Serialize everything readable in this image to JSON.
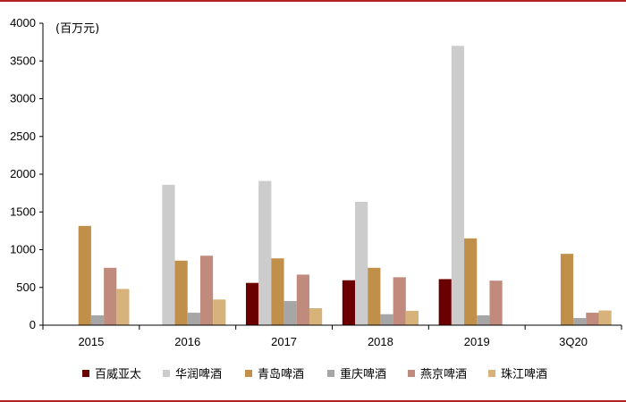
{
  "chart_data": {
    "type": "bar",
    "unit_label": "(百万元)",
    "categories": [
      "2015",
      "2016",
      "2017",
      "2018",
      "2019",
      "3Q20"
    ],
    "ylim": [
      0,
      4000
    ],
    "yticks": [
      0,
      500,
      1000,
      1500,
      2000,
      2500,
      3000,
      3500,
      4000
    ],
    "grid": false,
    "legend_position": "bottom",
    "series": [
      {
        "name": "百威亚太",
        "color": "#6b0000",
        "values": [
          null,
          null,
          560,
          595,
          610,
          null
        ]
      },
      {
        "name": "华润啤酒",
        "color": "#cccccc",
        "values": [
          null,
          1860,
          1910,
          1635,
          3700,
          null
        ]
      },
      {
        "name": "青岛啤酒",
        "color": "#c0904a",
        "values": [
          1315,
          855,
          885,
          760,
          1150,
          945
        ]
      },
      {
        "name": "重庆啤酒",
        "color": "#a6a6a6",
        "values": [
          130,
          165,
          320,
          145,
          130,
          95
        ]
      },
      {
        "name": "燕京啤酒",
        "color": "#c08b7d",
        "values": [
          760,
          920,
          670,
          635,
          590,
          165
        ]
      },
      {
        "name": "珠江啤酒",
        "color": "#d7b27a",
        "values": [
          480,
          340,
          225,
          190,
          null,
          195
        ]
      }
    ]
  }
}
